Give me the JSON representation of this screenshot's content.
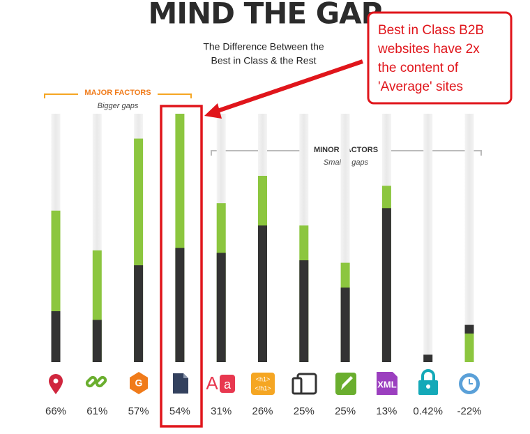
{
  "chart_data": {
    "type": "bar",
    "title": "MIND THE GAP",
    "subtitle": [
      "The Difference Between the",
      "Best in Class & the Rest"
    ],
    "groups": [
      {
        "label": "MAJOR FACTORS",
        "sublabel": "Bigger gaps"
      },
      {
        "label": "MINOR FACTORS",
        "sublabel": "Smaller gaps"
      }
    ],
    "annotation": [
      "Best in Class B2B",
      "websites have 2x",
      "the content of",
      "'Average' sites"
    ],
    "ylim": [
      0,
      100
    ],
    "series": [
      {
        "color": "#8cc63f",
        "values": [
          61,
          45,
          90,
          100,
          64,
          75,
          55,
          40,
          71,
          0,
          11.5
        ]
      },
      {
        "color": "#333333",
        "values": [
          20.5,
          17,
          39,
          46,
          44,
          55,
          41,
          30,
          62,
          3,
          15
        ]
      }
    ],
    "values": [
      66,
      61,
      57,
      54,
      31,
      26,
      25,
      25,
      13,
      0.42,
      -22
    ],
    "value_labels": [
      "66%",
      "61%",
      "57%",
      "54%",
      "31%",
      "26%",
      "25%",
      "25%",
      "13%",
      "0.42%",
      "-22%"
    ]
  }
}
